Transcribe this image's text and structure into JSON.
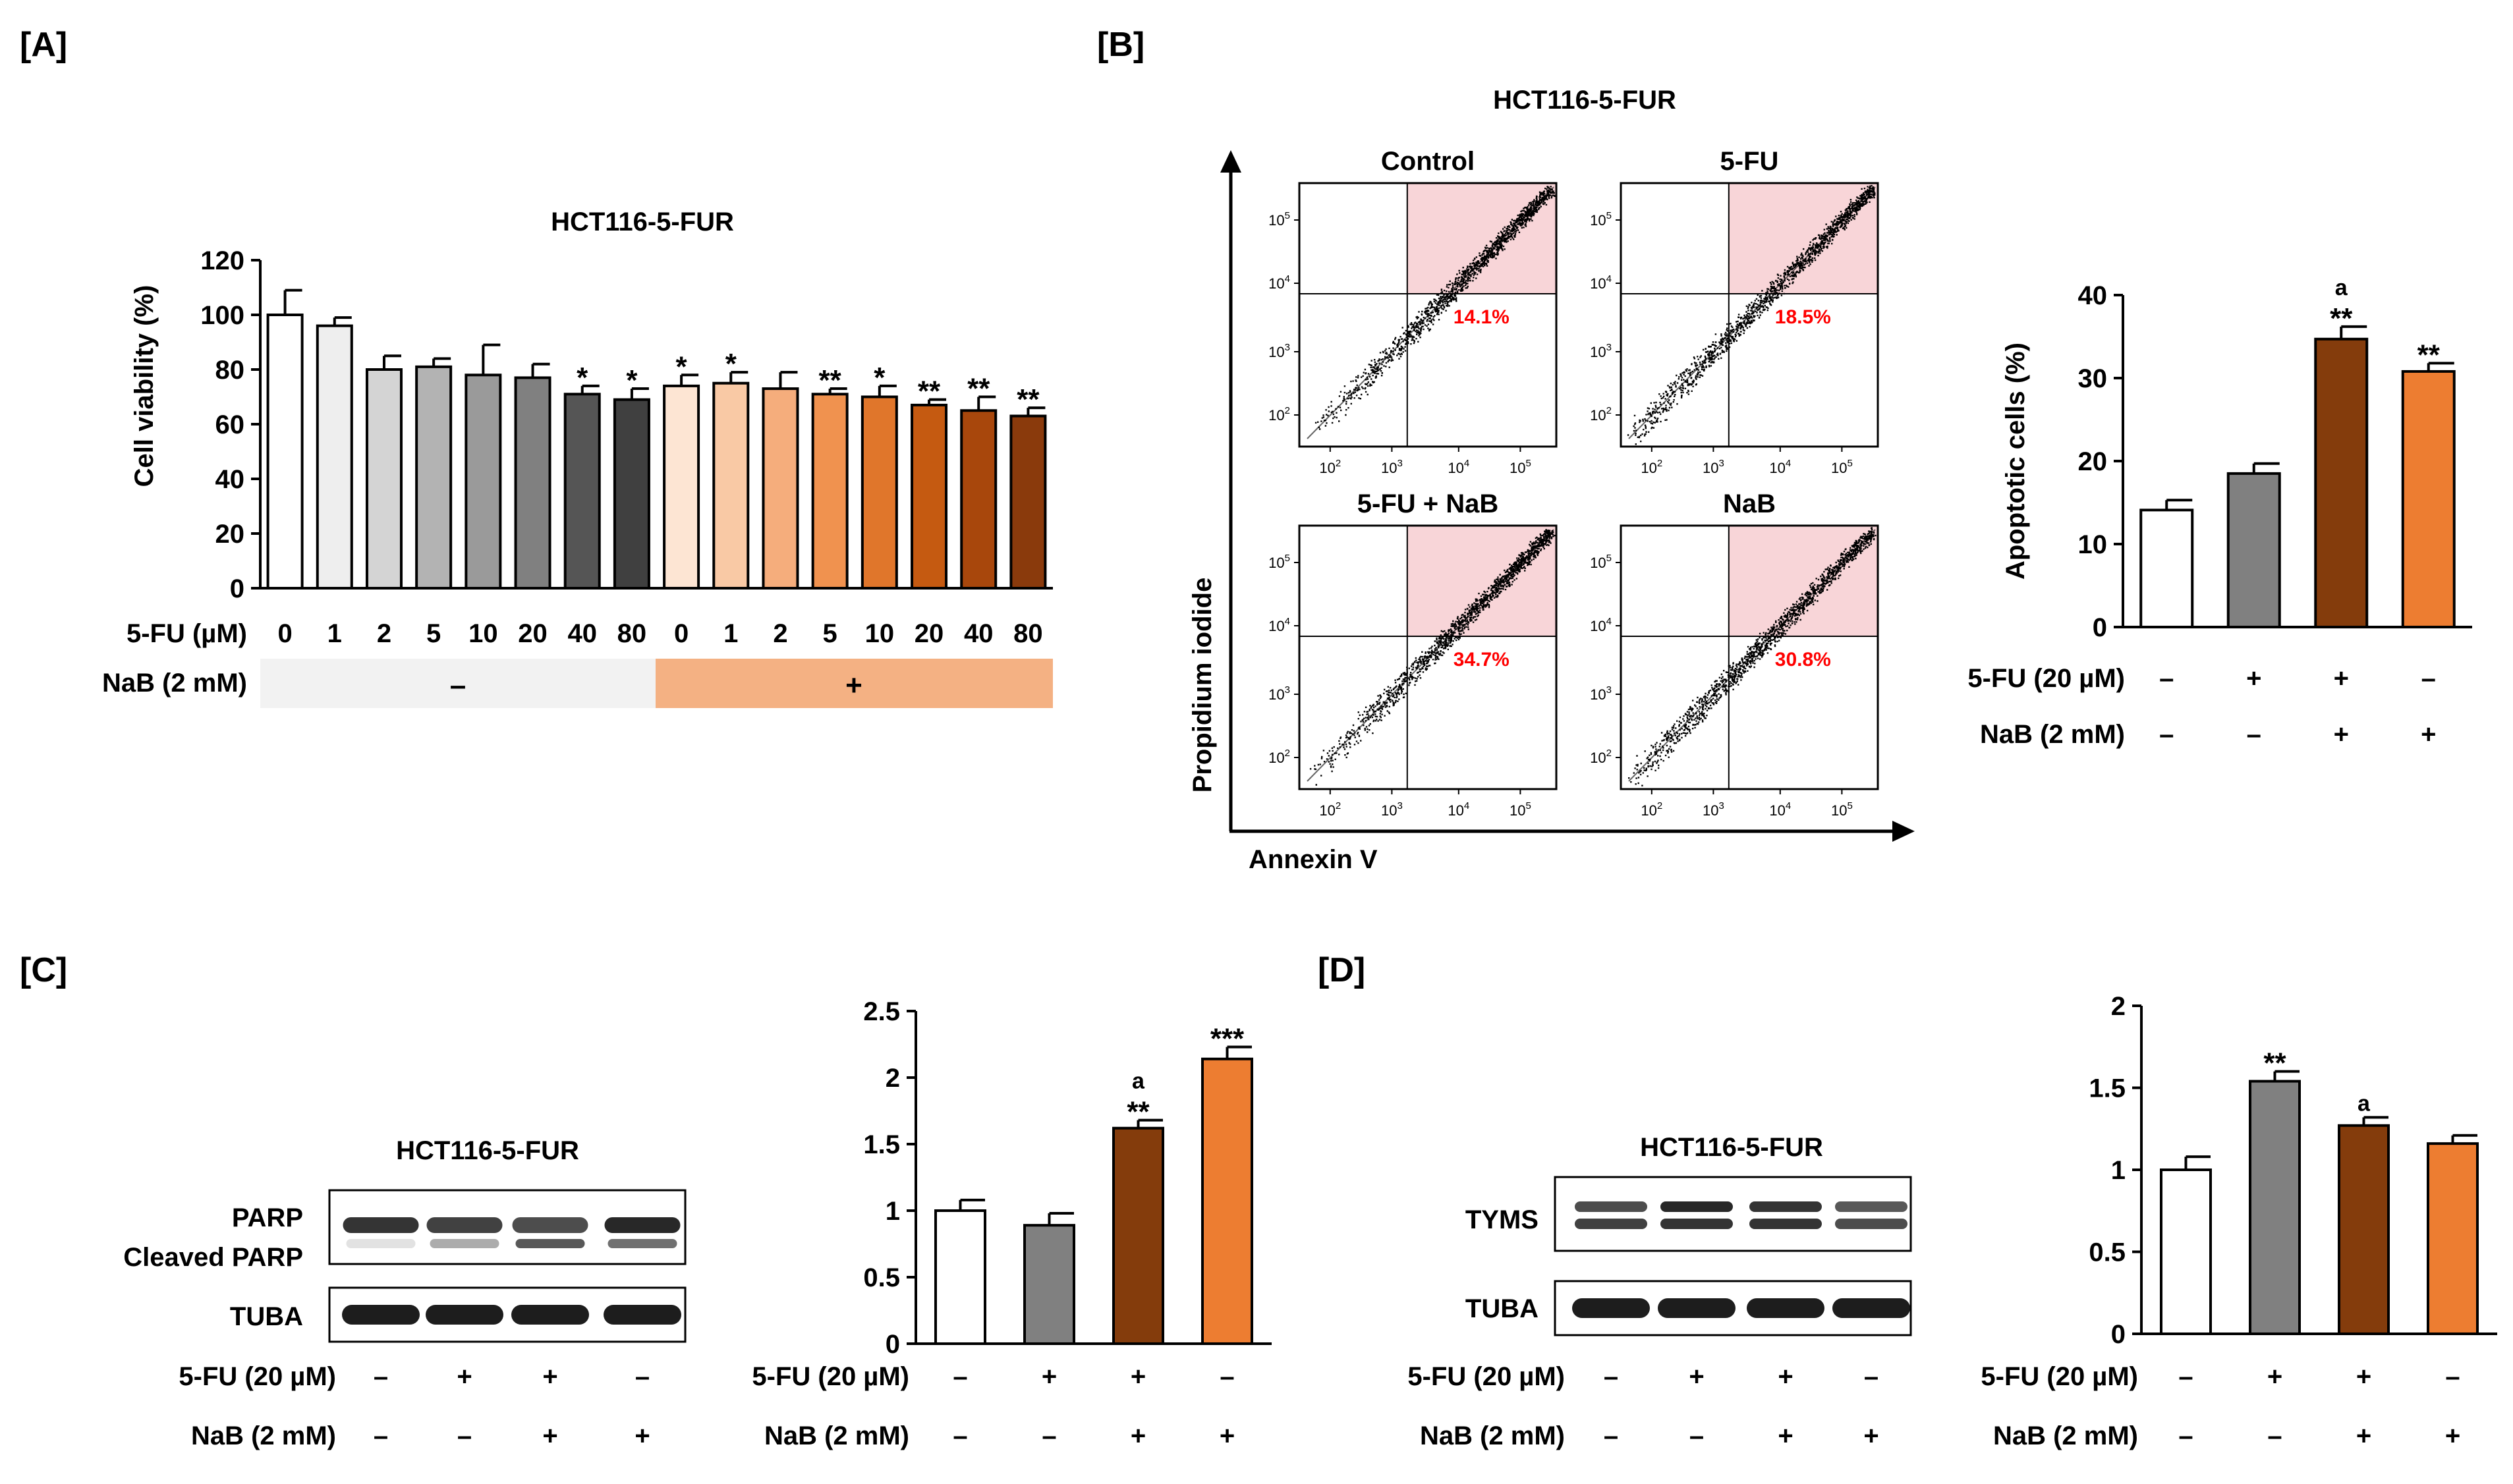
{
  "colors": {
    "white": "#ffffff",
    "g1": "#eeeeee",
    "g2": "#d4d4d4",
    "g3": "#b3b3b3",
    "g4": "#9a9a9a",
    "g5": "#808080",
    "g6": "#555555",
    "g7": "#404040",
    "o1": "#fde5d3",
    "o2": "#f9c9a5",
    "o3": "#f5ad7c",
    "o4": "#f0924f",
    "o5": "#e0762b",
    "o6": "#c55a11",
    "o7": "#a8470c",
    "o8": "#8a3a0c",
    "gray": "#808080",
    "brown": "#843c0c",
    "orange": "#ed7d31",
    "shadeGray": "#f2f2f2",
    "shadeOrange": "#f4b183",
    "quadrant": "#f8d5d8",
    "pctRed": "#ff0000"
  },
  "panels": {
    "A": {
      "label": "[A]",
      "title": "HCT116-5-FUR"
    },
    "B": {
      "label": "[B]",
      "title": "HCT116-5-FUR",
      "xaxis": "Annexin V",
      "yaxis": "Propidium iodide",
      "plots": [
        {
          "name": "Control",
          "pct": "14.1%"
        },
        {
          "name": "5-FU",
          "pct": "18.5%"
        },
        {
          "name": "5-FU + NaB",
          "pct": "34.7%"
        },
        {
          "name": "NaB",
          "pct": "30.8%"
        }
      ],
      "flowTicks": [
        "10",
        "10",
        "10",
        "10"
      ],
      "flowExp": [
        "2",
        "3",
        "4",
        "5"
      ]
    },
    "C": {
      "label": "[C]",
      "blotTitle": "HCT116-5-FUR",
      "bands": {
        "parp": "PARP",
        "cleaved": "Cleaved PARP",
        "tuba": "TUBA"
      },
      "rows": [
        {
          "label": "5-FU (20 µM)",
          "signs": [
            "–",
            "+",
            "+",
            "–"
          ]
        },
        {
          "label": "NaB (2 mM)",
          "signs": [
            "–",
            "–",
            "+",
            "+"
          ]
        }
      ]
    },
    "D": {
      "label": "[D]",
      "blotTitle": "HCT116-5-FUR",
      "bands": {
        "tyms": "TYMS",
        "tuba": "TUBA"
      },
      "rows": [
        {
          "label": "5-FU (20 µM)",
          "signs": [
            "–",
            "+",
            "+",
            "–"
          ]
        },
        {
          "label": "NaB (2 mM)",
          "signs": [
            "–",
            "–",
            "+",
            "+"
          ]
        }
      ]
    }
  },
  "chart_data": [
    {
      "id": "A",
      "type": "bar",
      "title": "HCT116-5-FUR",
      "ylabel": "Cell viability (%)",
      "ylim": [
        0,
        120
      ],
      "yticks": [
        0,
        20,
        40,
        60,
        80,
        100,
        120
      ],
      "xrow_label": "5-FU (µM)",
      "categories": [
        "0",
        "1",
        "2",
        "5",
        "10",
        "20",
        "40",
        "80",
        "0",
        "1",
        "2",
        "5",
        "10",
        "20",
        "40",
        "80"
      ],
      "values": [
        100,
        96,
        80,
        81,
        78,
        77,
        71,
        69,
        74,
        75,
        73,
        71,
        70,
        67,
        65,
        63
      ],
      "errors": [
        9,
        3,
        5,
        3,
        11,
        5,
        3,
        4,
        4,
        4,
        6,
        2,
        4,
        2,
        5,
        3
      ],
      "sig": [
        "",
        "",
        "",
        "",
        "",
        "",
        "*",
        "*",
        "*",
        "*",
        "",
        "**",
        "*",
        "**",
        "**",
        "**"
      ],
      "fills": [
        "white",
        "g1",
        "g2",
        "g3",
        "g4",
        "g5",
        "g6",
        "g7",
        "o1",
        "o2",
        "o3",
        "o4",
        "o5",
        "o6",
        "o7",
        "o8"
      ],
      "group_label": "NaB (2 mM)",
      "groups": [
        "–",
        "+"
      ]
    },
    {
      "id": "B",
      "type": "bar",
      "ylabel": "Apoptotic cells (%)",
      "ylim": [
        0,
        40
      ],
      "yticks": [
        0,
        10,
        20,
        30,
        40
      ],
      "values": [
        14.1,
        18.5,
        34.7,
        30.8
      ],
      "errors": [
        1.2,
        1.2,
        1.5,
        1.0
      ],
      "sig": [
        "",
        "",
        "**",
        "**"
      ],
      "marks": [
        "",
        "",
        "a",
        ""
      ],
      "fills": [
        "white",
        "gray",
        "brown",
        "orange"
      ],
      "rows": [
        {
          "label": "5-FU (20 µM)",
          "signs": [
            "–",
            "+",
            "+",
            "–"
          ]
        },
        {
          "label": "NaB (2 mM)",
          "signs": [
            "–",
            "–",
            "+",
            "+"
          ]
        }
      ]
    },
    {
      "id": "C",
      "type": "bar",
      "ylim": [
        0,
        2.5
      ],
      "yticks": [
        0,
        0.5,
        1,
        1.5,
        2,
        2.5
      ],
      "yticklabels": [
        "0",
        "0.5",
        "1",
        "1.5",
        "2",
        "2.5"
      ],
      "values": [
        1.0,
        0.89,
        1.62,
        2.14
      ],
      "errors": [
        0.08,
        0.09,
        0.06,
        0.09
      ],
      "sig": [
        "",
        "",
        "**",
        "***"
      ],
      "marks": [
        "",
        "",
        "a",
        ""
      ],
      "fills": [
        "white",
        "gray",
        "brown",
        "orange"
      ],
      "rows": [
        {
          "label": "5-FU (20 µM)",
          "signs": [
            "–",
            "+",
            "+",
            "–"
          ]
        },
        {
          "label": "NaB (2 mM)",
          "signs": [
            "–",
            "–",
            "+",
            "+"
          ]
        }
      ]
    },
    {
      "id": "D",
      "type": "bar",
      "ylim": [
        0,
        2
      ],
      "yticks": [
        0,
        0.5,
        1,
        1.5,
        2
      ],
      "yticklabels": [
        "0",
        "0.5",
        "1",
        "1.5",
        "2"
      ],
      "values": [
        1.0,
        1.54,
        1.27,
        1.16
      ],
      "errors": [
        0.08,
        0.06,
        0.05,
        0.05
      ],
      "sig": [
        "",
        "**",
        "",
        ""
      ],
      "marks": [
        "",
        "",
        "a",
        ""
      ],
      "fills": [
        "white",
        "gray",
        "brown",
        "orange"
      ],
      "rows": [
        {
          "label": "5-FU (20 µM)",
          "signs": [
            "–",
            "+",
            "+",
            "–"
          ]
        },
        {
          "label": "NaB (2 mM)",
          "signs": [
            "–",
            "–",
            "+",
            "+"
          ]
        }
      ]
    }
  ]
}
